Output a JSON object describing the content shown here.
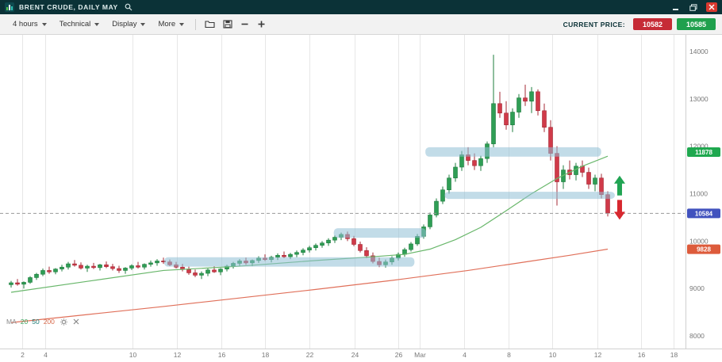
{
  "window": {
    "title": "BRENT CRUDE, DAILY MAY"
  },
  "toolbar": {
    "dropdowns": [
      {
        "label": "4 hours"
      },
      {
        "label": "Technical"
      },
      {
        "label": "Display"
      },
      {
        "label": "More"
      }
    ],
    "current_price_label": "CURRENT PRICE:",
    "bid": {
      "value": "10582",
      "color": "#c62b36"
    },
    "ask": {
      "value": "10585",
      "color": "#1fa04d"
    }
  },
  "ma_legend": {
    "label": "MA",
    "periods": [
      {
        "value": "20",
        "color": "#3da35d"
      },
      {
        "value": "50",
        "color": "#1c7a74"
      },
      {
        "value": "200",
        "color": "#d8694a"
      }
    ]
  },
  "chart_data": {
    "type": "candlestick",
    "title": "BRENT CRUDE, DAILY MAY",
    "ylim": [
      7750,
      14350
    ],
    "y_ticks": [
      14000,
      13000,
      12000,
      11000,
      10000,
      9000,
      8000
    ],
    "x_ticks": [
      {
        "label": "2",
        "pos": 0.033
      },
      {
        "label": "4",
        "pos": 0.066
      },
      {
        "label": "10",
        "pos": 0.194
      },
      {
        "label": "12",
        "pos": 0.259
      },
      {
        "label": "16",
        "pos": 0.324
      },
      {
        "label": "18",
        "pos": 0.388
      },
      {
        "label": "22",
        "pos": 0.453
      },
      {
        "label": "24",
        "pos": 0.518
      },
      {
        "label": "26",
        "pos": 0.582
      },
      {
        "label": "Mar",
        "pos": 0.614
      },
      {
        "label": "4",
        "pos": 0.679
      },
      {
        "label": "8",
        "pos": 0.744
      },
      {
        "label": "10",
        "pos": 0.808
      },
      {
        "label": "12",
        "pos": 0.873
      },
      {
        "label": "16",
        "pos": 0.937
      },
      {
        "label": "18",
        "pos": 0.985
      }
    ],
    "bar_spacing": 8,
    "first_bar_x": 14,
    "colors": {
      "up": "#2f9e55",
      "up_dark": "#1e7c3e",
      "down": "#d03a49",
      "down_dark": "#a42834",
      "grid": "#e7e7e7",
      "axis": "#d0d0d0",
      "tick_text": "#787878",
      "zone": "#8fbfd6",
      "dashed_line": "#999999"
    },
    "candles": [
      [
        9080,
        9160,
        9020,
        9120
      ],
      [
        9120,
        9200,
        9060,
        9090
      ],
      [
        9090,
        9150,
        9000,
        9130
      ],
      [
        9130,
        9260,
        9100,
        9230
      ],
      [
        9230,
        9330,
        9180,
        9300
      ],
      [
        9300,
        9420,
        9260,
        9380
      ],
      [
        9380,
        9460,
        9310,
        9350
      ],
      [
        9350,
        9430,
        9300,
        9410
      ],
      [
        9410,
        9500,
        9360,
        9450
      ],
      [
        9450,
        9560,
        9400,
        9520
      ],
      [
        9520,
        9600,
        9460,
        9490
      ],
      [
        9490,
        9550,
        9400,
        9430
      ],
      [
        9430,
        9500,
        9350,
        9470
      ],
      [
        9470,
        9540,
        9410,
        9440
      ],
      [
        9440,
        9520,
        9380,
        9500
      ],
      [
        9500,
        9570,
        9430,
        9460
      ],
      [
        9460,
        9520,
        9380,
        9420
      ],
      [
        9420,
        9480,
        9330,
        9380
      ],
      [
        9380,
        9450,
        9310,
        9430
      ],
      [
        9430,
        9510,
        9390,
        9480
      ],
      [
        9480,
        9560,
        9420,
        9450
      ],
      [
        9450,
        9530,
        9400,
        9510
      ],
      [
        9510,
        9590,
        9460,
        9540
      ],
      [
        9540,
        9620,
        9480,
        9580
      ],
      [
        9580,
        9650,
        9520,
        9560
      ],
      [
        9560,
        9610,
        9470,
        9500
      ],
      [
        9500,
        9560,
        9420,
        9450
      ],
      [
        9450,
        9520,
        9360,
        9400
      ],
      [
        9400,
        9460,
        9290,
        9330
      ],
      [
        9330,
        9400,
        9240,
        9280
      ],
      [
        9280,
        9360,
        9200,
        9320
      ],
      [
        9320,
        9420,
        9260,
        9390
      ],
      [
        9390,
        9470,
        9330,
        9350
      ],
      [
        9350,
        9430,
        9280,
        9410
      ],
      [
        9410,
        9500,
        9360,
        9470
      ],
      [
        9470,
        9560,
        9420,
        9530
      ],
      [
        9530,
        9620,
        9480,
        9580
      ],
      [
        9580,
        9650,
        9500,
        9540
      ],
      [
        9540,
        9610,
        9470,
        9590
      ],
      [
        9590,
        9680,
        9540,
        9640
      ],
      [
        9640,
        9720,
        9580,
        9610
      ],
      [
        9610,
        9690,
        9550,
        9660
      ],
      [
        9660,
        9740,
        9600,
        9700
      ],
      [
        9700,
        9780,
        9640,
        9670
      ],
      [
        9670,
        9750,
        9620,
        9720
      ],
      [
        9720,
        9800,
        9660,
        9760
      ],
      [
        9760,
        9850,
        9700,
        9810
      ],
      [
        9810,
        9900,
        9760,
        9860
      ],
      [
        9860,
        9950,
        9800,
        9910
      ],
      [
        9910,
        10000,
        9860,
        9960
      ],
      [
        9960,
        10060,
        9900,
        10020
      ],
      [
        10020,
        10120,
        9960,
        10080
      ],
      [
        10080,
        10180,
        10020,
        10140
      ],
      [
        10140,
        10200,
        10000,
        10050
      ],
      [
        10050,
        10110,
        9890,
        9930
      ],
      [
        9930,
        9990,
        9760,
        9800
      ],
      [
        9800,
        9870,
        9640,
        9690
      ],
      [
        9690,
        9760,
        9530,
        9570
      ],
      [
        9570,
        9650,
        9450,
        9500
      ],
      [
        9500,
        9610,
        9440,
        9560
      ],
      [
        9560,
        9680,
        9500,
        9640
      ],
      [
        9640,
        9760,
        9590,
        9720
      ],
      [
        9720,
        9860,
        9670,
        9820
      ],
      [
        9820,
        9980,
        9780,
        9940
      ],
      [
        9940,
        10150,
        9900,
        10100
      ],
      [
        10100,
        10350,
        10050,
        10300
      ],
      [
        10300,
        10600,
        10250,
        10550
      ],
      [
        10550,
        10900,
        10500,
        10840
      ],
      [
        10840,
        11150,
        10780,
        11080
      ],
      [
        11080,
        11400,
        11000,
        11330
      ],
      [
        11330,
        11650,
        11250,
        11560
      ],
      [
        11560,
        11900,
        11480,
        11820
      ],
      [
        11820,
        11980,
        11600,
        11700
      ],
      [
        11700,
        11850,
        11500,
        11590
      ],
      [
        11590,
        11800,
        11480,
        11740
      ],
      [
        11740,
        12100,
        11650,
        12050
      ],
      [
        12050,
        13930,
        11980,
        12900
      ],
      [
        12900,
        13150,
        12600,
        12700
      ],
      [
        12700,
        12950,
        12350,
        12450
      ],
      [
        12450,
        12800,
        12300,
        12720
      ],
      [
        12720,
        13100,
        12600,
        13020
      ],
      [
        13020,
        13300,
        12850,
        12950
      ],
      [
        12950,
        13250,
        12700,
        13150
      ],
      [
        13150,
        13200,
        12650,
        12750
      ],
      [
        12750,
        12900,
        12300,
        12400
      ],
      [
        12400,
        12550,
        11700,
        11850
      ],
      [
        11850,
        12000,
        10750,
        11250
      ],
      [
        11250,
        11600,
        11100,
        11500
      ],
      [
        11500,
        11700,
        11300,
        11400
      ],
      [
        11400,
        11650,
        11280,
        11580
      ],
      [
        11580,
        11700,
        11350,
        11450
      ],
      [
        11450,
        11550,
        11100,
        11200
      ],
      [
        11200,
        11400,
        11050,
        11330
      ],
      [
        11330,
        11420,
        10900,
        10980
      ],
      [
        10980,
        11050,
        10520,
        10590
      ]
    ],
    "ma_lines": [
      {
        "name": "MA50",
        "color": "#69b76b",
        "points": [
          [
            0,
            8920
          ],
          [
            12,
            9150
          ],
          [
            24,
            9380
          ],
          [
            36,
            9470
          ],
          [
            48,
            9590
          ],
          [
            56,
            9660
          ],
          [
            62,
            9720
          ],
          [
            66,
            9830
          ],
          [
            70,
            10030
          ],
          [
            74,
            10290
          ],
          [
            78,
            10640
          ],
          [
            82,
            11000
          ],
          [
            86,
            11320
          ],
          [
            90,
            11580
          ],
          [
            94,
            11790
          ]
        ]
      },
      {
        "name": "MA200",
        "color": "#e0705a",
        "points": [
          [
            0,
            8280
          ],
          [
            12,
            8450
          ],
          [
            24,
            8620
          ],
          [
            36,
            8800
          ],
          [
            48,
            8980
          ],
          [
            60,
            9170
          ],
          [
            72,
            9380
          ],
          [
            82,
            9580
          ],
          [
            88,
            9700
          ],
          [
            94,
            9830
          ]
        ]
      }
    ],
    "zones": [
      {
        "x1": 0.24,
        "x2": 0.606,
        "top": 9660,
        "bottom": 9460
      },
      {
        "x1": 0.488,
        "x2": 0.623,
        "top": 10270,
        "bottom": 10070
      },
      {
        "x1": 0.622,
        "x2": 0.879,
        "top": 11980,
        "bottom": 11780
      },
      {
        "x1": 0.65,
        "x2": 0.899,
        "top": 11040,
        "bottom": 10890
      }
    ],
    "current_price_line": 10584,
    "price_badges": [
      {
        "value": "11878",
        "color": "#1fa84f"
      },
      {
        "value": "10584",
        "color": "#4152be"
      },
      {
        "value": "9828",
        "color": "#dd5b3b"
      }
    ],
    "arrows": [
      {
        "dir": "up",
        "x": 0.906,
        "tip_price": 11380,
        "color": "#21a453"
      },
      {
        "dir": "down",
        "x": 0.906,
        "tip_price": 10450,
        "color": "#d7282f"
      }
    ]
  }
}
